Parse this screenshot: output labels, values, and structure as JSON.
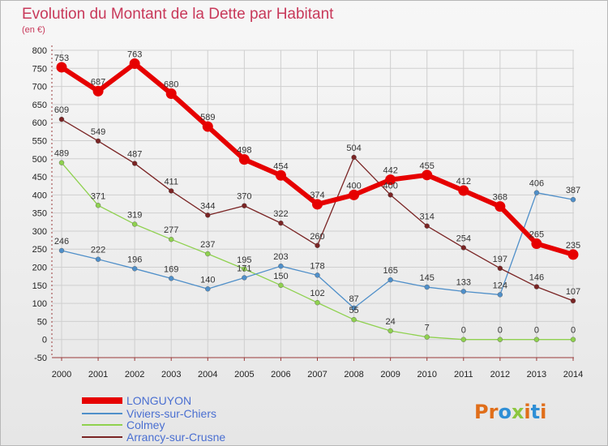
{
  "chart_data": {
    "type": "line",
    "title": "Evolution du Montant de la Dette par Habitant",
    "subtitle": "(en €)",
    "xlabel": "",
    "ylabel": "",
    "ylim": [
      -50,
      800
    ],
    "yticks": [
      -50,
      0,
      50,
      100,
      150,
      200,
      250,
      300,
      350,
      400,
      450,
      500,
      550,
      600,
      650,
      700,
      750,
      800
    ],
    "ytick_labels": [
      "-50",
      "0",
      "50",
      "100",
      "150",
      "200",
      "250",
      "300",
      "350",
      "400",
      "450",
      "500",
      "550",
      "600",
      "650",
      "700",
      "750",
      "800"
    ],
    "categories": [
      "2000",
      "2001",
      "2002",
      "2003",
      "2004",
      "2005",
      "2006",
      "2007",
      "2008",
      "2009",
      "2010",
      "2011",
      "2012",
      "2013",
      "2014"
    ],
    "grid": true,
    "series": [
      {
        "name": "LONGUYON",
        "color": "#e60000",
        "values": [
          753,
          687,
          763,
          680,
          589,
          498,
          454,
          374,
          400,
          442,
          455,
          412,
          368,
          265,
          235
        ],
        "labels": [
          "753",
          "687",
          "763",
          "680",
          "589",
          "498",
          "454",
          "374",
          "400",
          "442",
          "455",
          "412",
          "368",
          "265",
          "235"
        ]
      },
      {
        "name": "Viviers-sur-Chiers",
        "color": "#4f8fc9",
        "values": [
          246,
          222,
          196,
          169,
          140,
          171,
          203,
          178,
          87,
          165,
          145,
          133,
          124,
          406,
          387
        ],
        "labels": [
          "246",
          "222",
          "196",
          "169",
          "140",
          "171",
          "203",
          "178",
          "87",
          "165",
          "145",
          "133",
          "124",
          "406",
          "387"
        ]
      },
      {
        "name": "Colmey",
        "color": "#8fd14f",
        "values": [
          489,
          371,
          319,
          277,
          237,
          195,
          150,
          102,
          55,
          24,
          7,
          0,
          0,
          0,
          0
        ],
        "labels": [
          "489",
          "371",
          "319",
          "277",
          "237",
          "195",
          "150",
          "102",
          "55",
          "24",
          "7",
          "0",
          "0",
          "0",
          "0"
        ]
      },
      {
        "name": "Arrancy-sur-Crusne",
        "color": "#7a2424",
        "values": [
          609,
          549,
          487,
          411,
          344,
          370,
          322,
          260,
          504,
          400,
          314,
          254,
          197,
          146,
          107
        ],
        "labels": [
          "609",
          "549",
          "487",
          "411",
          "344",
          "370",
          "322",
          "260",
          "504",
          "400",
          "314",
          "254",
          "197",
          "146",
          "107"
        ]
      }
    ],
    "legend": {
      "position": "bottom-left",
      "text_color": "#4a6fd1"
    }
  },
  "logo": {
    "parts": [
      {
        "text": "Pr",
        "color": "#e06e1a"
      },
      {
        "text": "o",
        "color": "#2f8fd6"
      },
      {
        "text": "x",
        "color": "#8cc63f"
      },
      {
        "text": "i",
        "color": "#e06e1a"
      },
      {
        "text": "t",
        "color": "#2f8fd6"
      },
      {
        "text": "i",
        "color": "#e06e1a"
      }
    ]
  }
}
